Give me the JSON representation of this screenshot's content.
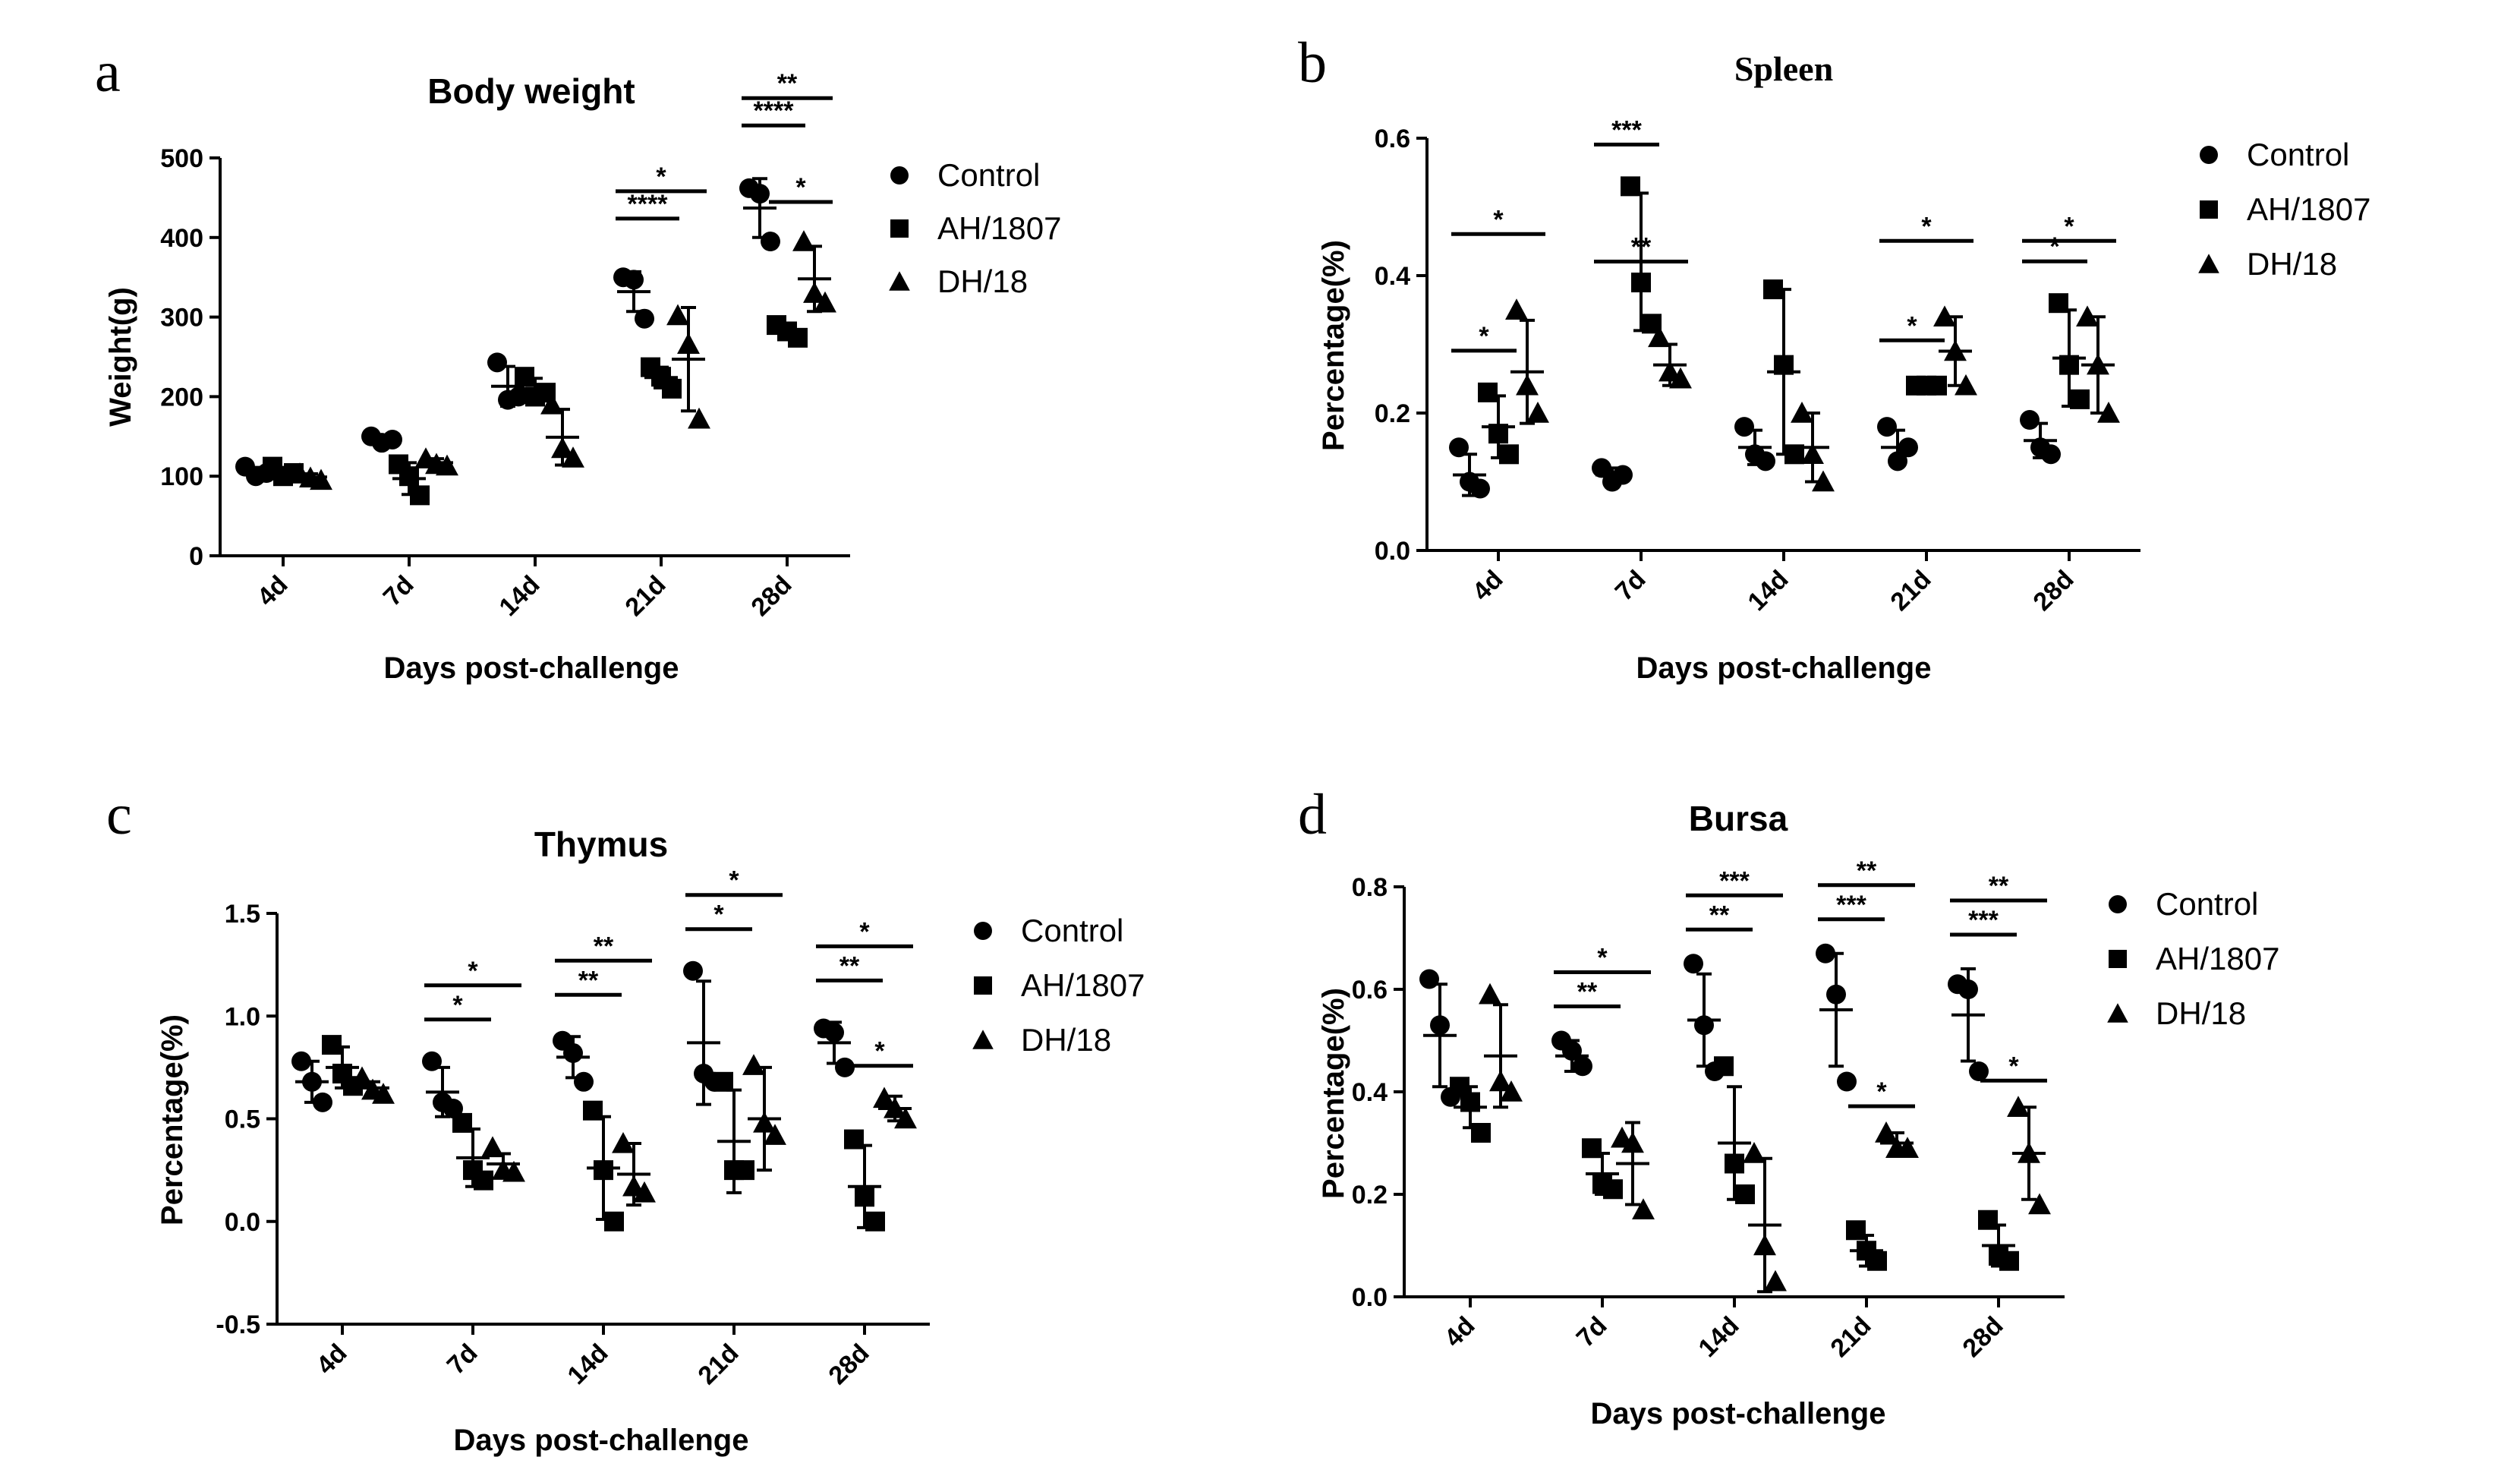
{
  "chart_data": [
    {
      "panel": "a",
      "type": "scatter",
      "title": "Body weight",
      "xlabel": "Days post-challenge",
      "ylabel": "Weight(g)",
      "ylim": [
        0,
        500
      ],
      "yticks": [
        0,
        100,
        200,
        300,
        400,
        500
      ],
      "ytick_labels": [
        "0",
        "100",
        "200",
        "300",
        "400",
        "500"
      ],
      "categories": [
        "4d",
        "7d",
        "14d",
        "21d",
        "28d"
      ],
      "legend": [
        "Control",
        "AH/1807",
        "DH/18"
      ],
      "series": [
        {
          "name": "Control",
          "marker": "circle",
          "points": [
            [
              112,
              100,
              104
            ],
            [
              150,
              142,
              146
            ],
            [
              243,
              196,
              200
            ],
            [
              350,
              347,
              298
            ],
            [
              462,
              455,
              395
            ]
          ],
          "mean": [
            105,
            146,
            213,
            332,
            437
          ],
          "sd": [
            6,
            4,
            25,
            25,
            37
          ]
        },
        {
          "name": "AH/1807",
          "marker": "square",
          "points": [
            [
              112,
              100,
              104
            ],
            [
              115,
              100,
              76
            ],
            [
              225,
              200,
              205
            ],
            [
              237,
              225,
              210
            ],
            [
              290,
              282,
              274
            ]
          ],
          "mean": [
            105,
            97,
            210,
            224,
            282
          ],
          "sd": [
            6,
            20,
            13,
            13,
            8
          ]
        },
        {
          "name": "DH/18",
          "marker": "triangle",
          "points": [
            [
              103,
              98,
              95
            ],
            [
              122,
              115,
              113
            ],
            [
              190,
              135,
              123
            ],
            [
              302,
              266,
              172
            ],
            [
              395,
              330,
              318
            ]
          ],
          "mean": [
            99,
            117,
            149,
            247,
            348
          ],
          "sd": [
            4,
            5,
            35,
            65,
            41
          ]
        }
      ],
      "annotations": [
        {
          "group": "21d",
          "from": "Control",
          "to": "AH/1807",
          "label": "****"
        },
        {
          "group": "21d",
          "from": "Control",
          "to": "DH/18",
          "label": "*"
        },
        {
          "group": "28d",
          "from": "Control",
          "to": "AH/1807",
          "label": "****"
        },
        {
          "group": "28d",
          "from": "Control",
          "to": "DH/18",
          "label": "**"
        },
        {
          "group": "28d",
          "from": "AH/1807",
          "to": "DH/18",
          "label": "*"
        }
      ]
    },
    {
      "panel": "b",
      "type": "scatter",
      "title": "Spleen",
      "xlabel": "Days post-challenge",
      "ylabel": "Percentage(%)",
      "ylim": [
        0,
        0.6
      ],
      "yticks": [
        0,
        0.2,
        0.4,
        0.6
      ],
      "ytick_labels": [
        "0.0",
        "0.2",
        "0.4",
        "0.6"
      ],
      "categories": [
        "4d",
        "7d",
        "14d",
        "21d",
        "28d"
      ],
      "legend": [
        "Control",
        "AH/1807",
        "DH/18"
      ],
      "series": [
        {
          "name": "Control",
          "marker": "circle",
          "points": [
            [
              0.15,
              0.1,
              0.09
            ],
            [
              0.12,
              0.1,
              0.11
            ],
            [
              0.18,
              0.14,
              0.13
            ],
            [
              0.18,
              0.13,
              0.15
            ],
            [
              0.19,
              0.15,
              0.14
            ]
          ],
          "mean": [
            0.11,
            0.11,
            0.15,
            0.15,
            0.16
          ],
          "sd": [
            0.03,
            0.01,
            0.025,
            0.025,
            0.025
          ]
        },
        {
          "name": "AH/1807",
          "marker": "square",
          "points": [
            [
              0.23,
              0.17,
              0.14
            ],
            [
              0.53,
              0.39,
              0.33
            ],
            [
              0.38,
              0.27,
              0.14
            ],
            [
              0.24,
              0.24,
              0.24
            ],
            [
              0.36,
              0.27,
              0.22
            ]
          ],
          "mean": [
            0.18,
            0.42,
            0.26,
            0.24,
            0.28
          ],
          "sd": [
            0.045,
            0.1,
            0.12,
            0.005,
            0.07
          ]
        },
        {
          "name": "DH/18",
          "marker": "triangle",
          "points": [
            [
              0.35,
              0.24,
              0.2
            ],
            [
              0.31,
              0.26,
              0.25
            ],
            [
              0.2,
              0.14,
              0.1
            ],
            [
              0.34,
              0.29,
              0.24
            ],
            [
              0.34,
              0.27,
              0.2
            ]
          ],
          "mean": [
            0.26,
            0.27,
            0.15,
            0.29,
            0.27
          ],
          "sd": [
            0.075,
            0.03,
            0.05,
            0.05,
            0.07
          ]
        }
      ],
      "annotations": [
        {
          "group": "4d",
          "from": "Control",
          "to": "AH/1807",
          "label": "*"
        },
        {
          "group": "4d",
          "from": "Control",
          "to": "DH/18",
          "label": "*"
        },
        {
          "group": "7d",
          "from": "Control",
          "to": "AH/1807",
          "label": "***"
        },
        {
          "group": "7d",
          "from": "Control",
          "to": "DH/18",
          "label": "**"
        },
        {
          "group": "21d",
          "from": "Control",
          "to": "AH/1807",
          "label": "*"
        },
        {
          "group": "21d",
          "from": "Control",
          "to": "DH/18",
          "label": "*"
        },
        {
          "group": "28d",
          "from": "Control",
          "to": "AH/1807",
          "label": "*"
        },
        {
          "group": "28d",
          "from": "Control",
          "to": "DH/18",
          "label": "*"
        }
      ]
    },
    {
      "panel": "c",
      "type": "scatter",
      "title": "Thymus",
      "xlabel": "Days post-challenge",
      "ylabel": "Percentage(%)",
      "ylim": [
        -0.5,
        1.5
      ],
      "yticks": [
        -0.5,
        0,
        0.5,
        1,
        1.5
      ],
      "ytick_labels": [
        "-0.5",
        "0.0",
        "0.5",
        "1.0",
        "1.5"
      ],
      "categories": [
        "4d",
        "7d",
        "14d",
        "21d",
        "28d"
      ],
      "legend": [
        "Control",
        "AH/1807",
        "DH/18"
      ],
      "series": [
        {
          "name": "Control",
          "marker": "circle",
          "points": [
            [
              0.78,
              0.68,
              0.58
            ],
            [
              0.78,
              0.58,
              0.55
            ],
            [
              0.88,
              0.82,
              0.68
            ],
            [
              1.22,
              0.72,
              0.68
            ],
            [
              0.94,
              0.92,
              0.75
            ]
          ],
          "mean": [
            0.68,
            0.63,
            0.8,
            0.87,
            0.87
          ],
          "sd": [
            0.1,
            0.12,
            0.1,
            0.3,
            0.1
          ]
        },
        {
          "name": "AH/1807",
          "marker": "square",
          "points": [
            [
              0.86,
              0.72,
              0.66
            ],
            [
              0.48,
              0.25,
              0.2
            ],
            [
              0.54,
              0.25,
              0.0
            ],
            [
              0.68,
              0.25,
              0.25
            ],
            [
              0.4,
              0.12,
              0.0
            ]
          ],
          "mean": [
            0.75,
            0.31,
            0.26,
            0.39,
            0.17
          ],
          "sd": [
            0.1,
            0.14,
            0.25,
            0.25,
            0.2
          ]
        },
        {
          "name": "DH/18",
          "marker": "triangle",
          "points": [
            [
              0.7,
              0.64,
              0.62
            ],
            [
              0.36,
              0.25,
              0.24
            ],
            [
              0.38,
              0.17,
              0.14
            ],
            [
              0.76,
              0.48,
              0.42
            ],
            [
              0.6,
              0.55,
              0.5
            ]
          ],
          "mean": [
            0.65,
            0.28,
            0.23,
            0.5,
            0.55
          ],
          "sd": [
            0.03,
            0.05,
            0.15,
            0.25,
            0.06
          ]
        }
      ],
      "annotations": [
        {
          "group": "7d",
          "from": "Control",
          "to": "AH/1807",
          "label": "*"
        },
        {
          "group": "7d",
          "from": "Control",
          "to": "DH/18",
          "label": "*"
        },
        {
          "group": "14d",
          "from": "Control",
          "to": "AH/1807",
          "label": "**"
        },
        {
          "group": "14d",
          "from": "Control",
          "to": "DH/18",
          "label": "**"
        },
        {
          "group": "21d",
          "from": "Control",
          "to": "AH/1807",
          "label": "*"
        },
        {
          "group": "21d",
          "from": "Control",
          "to": "DH/18",
          "label": "*"
        },
        {
          "group": "28d",
          "from": "Control",
          "to": "AH/1807",
          "label": "**"
        },
        {
          "group": "28d",
          "from": "Control",
          "to": "DH/18",
          "label": "*"
        },
        {
          "group": "28d",
          "from": "AH/1807",
          "to": "DH/18",
          "label": "*"
        }
      ]
    },
    {
      "panel": "d",
      "type": "scatter",
      "title": "Bursa",
      "xlabel": "Days post-challenge",
      "ylabel": "Percentage(%)",
      "ylim": [
        0,
        0.8
      ],
      "yticks": [
        0,
        0.2,
        0.4,
        0.6,
        0.8
      ],
      "ytick_labels": [
        "0.0",
        "0.2",
        "0.4",
        "0.6",
        "0.8"
      ],
      "categories": [
        "4d",
        "7d",
        "14d",
        "21d",
        "28d"
      ],
      "legend": [
        "Control",
        "AH/1807",
        "DH/18"
      ],
      "series": [
        {
          "name": "Control",
          "marker": "circle",
          "points": [
            [
              0.62,
              0.53,
              0.39
            ],
            [
              0.5,
              0.48,
              0.45
            ],
            [
              0.65,
              0.53,
              0.44
            ],
            [
              0.67,
              0.59,
              0.42
            ],
            [
              0.61,
              0.6,
              0.44
            ]
          ],
          "mean": [
            0.51,
            0.47,
            0.54,
            0.56,
            0.55
          ],
          "sd": [
            0.1,
            0.03,
            0.09,
            0.11,
            0.09
          ]
        },
        {
          "name": "AH/1807",
          "marker": "square",
          "points": [
            [
              0.41,
              0.38,
              0.32
            ],
            [
              0.29,
              0.22,
              0.21
            ],
            [
              0.45,
              0.26,
              0.2
            ],
            [
              0.13,
              0.09,
              0.07
            ],
            [
              0.15,
              0.08,
              0.07
            ]
          ],
          "mean": [
            0.37,
            0.24,
            0.3,
            0.09,
            0.1
          ],
          "sd": [
            0.04,
            0.04,
            0.11,
            0.03,
            0.04
          ]
        },
        {
          "name": "DH/18",
          "marker": "triangle",
          "points": [
            [
              0.59,
              0.42,
              0.4
            ],
            [
              0.31,
              0.3,
              0.17
            ],
            [
              0.28,
              0.1,
              0.03
            ],
            [
              0.32,
              0.29,
              0.29
            ],
            [
              0.37,
              0.28,
              0.18
            ]
          ],
          "mean": [
            0.47,
            0.26,
            0.14,
            0.3,
            0.28
          ],
          "sd": [
            0.1,
            0.08,
            0.13,
            0.02,
            0.09
          ]
        }
      ],
      "annotations": [
        {
          "group": "7d",
          "from": "Control",
          "to": "AH/1807",
          "label": "**"
        },
        {
          "group": "7d",
          "from": "Control",
          "to": "DH/18",
          "label": "*"
        },
        {
          "group": "14d",
          "from": "Control",
          "to": "AH/1807",
          "label": "**"
        },
        {
          "group": "14d",
          "from": "Control",
          "to": "DH/18",
          "label": "***"
        },
        {
          "group": "21d",
          "from": "Control",
          "to": "AH/1807",
          "label": "***"
        },
        {
          "group": "21d",
          "from": "Control",
          "to": "DH/18",
          "label": "**"
        },
        {
          "group": "21d",
          "from": "AH/1807",
          "to": "DH/18",
          "label": "*"
        },
        {
          "group": "28d",
          "from": "Control",
          "to": "AH/1807",
          "label": "***"
        },
        {
          "group": "28d",
          "from": "Control",
          "to": "DH/18",
          "label": "**"
        },
        {
          "group": "28d",
          "from": "AH/1807",
          "to": "DH/18",
          "label": "*"
        }
      ]
    }
  ]
}
